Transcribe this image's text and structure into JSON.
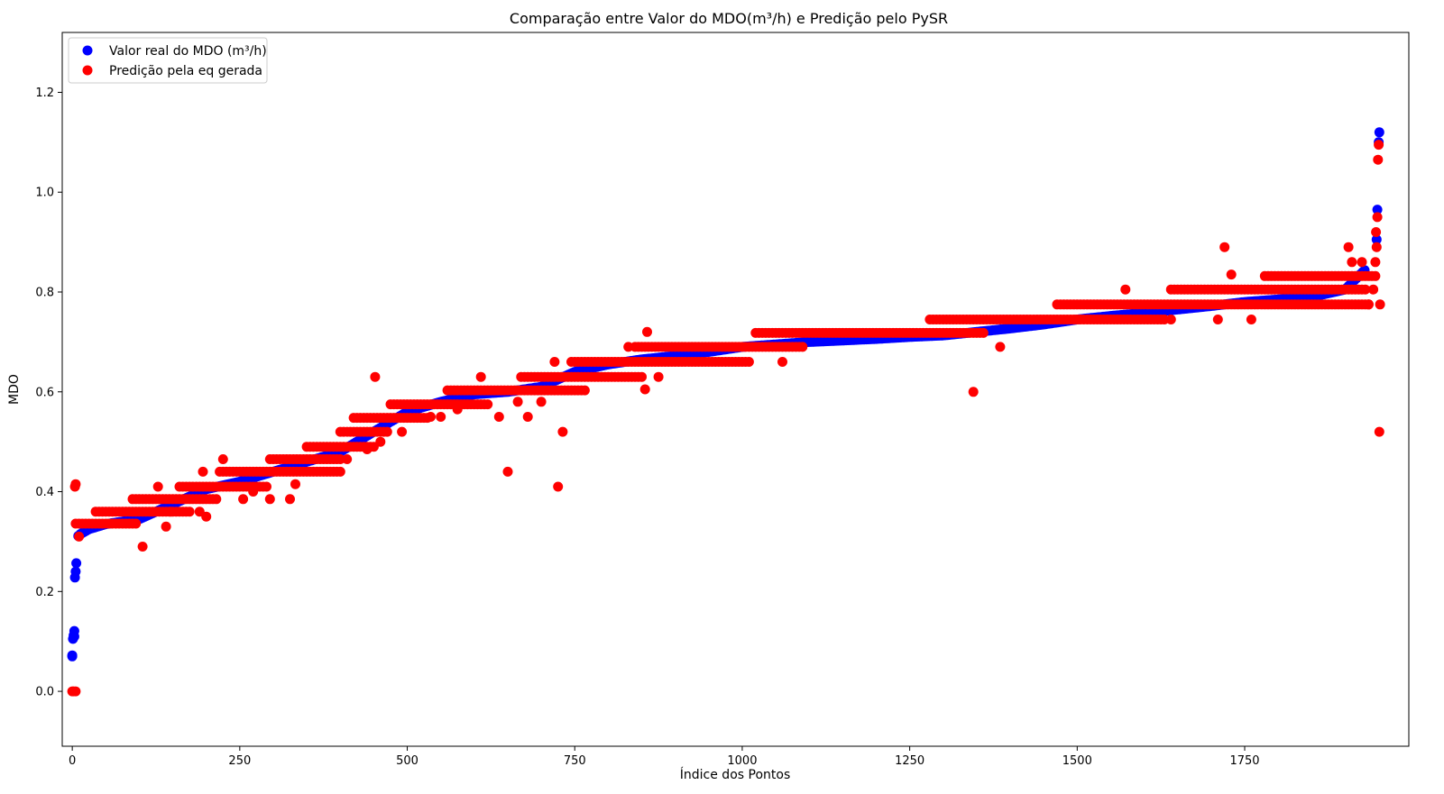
{
  "chart_data": {
    "type": "scatter",
    "title": "Comparação entre Valor do MDO(m³/h) e Predição pelo PySR",
    "xlabel": "Índice dos Pontos",
    "ylabel": "MDO",
    "xlim": [
      -15,
      1995
    ],
    "ylim": [
      -0.11,
      1.32
    ],
    "xticks": [
      0,
      250,
      500,
      750,
      1000,
      1250,
      1500,
      1750
    ],
    "yticks": [
      0.0,
      0.2,
      0.4,
      0.6,
      0.8,
      1.0,
      1.2
    ],
    "xtick_labels": [
      "0",
      "250",
      "500",
      "750",
      "1000",
      "1250",
      "1500",
      "1750"
    ],
    "ytick_labels": [
      "0.0",
      "0.2",
      "0.4",
      "0.6",
      "0.8",
      "1.0",
      "1.2"
    ],
    "grid": false,
    "legend_position": "top-left",
    "series": [
      {
        "name": "Valor real do MDO (m³/h)",
        "color": "#0000ff",
        "profile_x": [
          0,
          3,
          5,
          8,
          12,
          25,
          50,
          100,
          150,
          200,
          250,
          300,
          350,
          400,
          450,
          500,
          550,
          600,
          650,
          700,
          750,
          800,
          850,
          900,
          950,
          1000,
          1050,
          1100,
          1150,
          1200,
          1250,
          1300,
          1350,
          1400,
          1450,
          1500,
          1550,
          1600,
          1650,
          1700,
          1750,
          1800,
          1850,
          1900,
          1930
        ],
        "profile_y": [
          0.07,
          0.11,
          0.23,
          0.31,
          0.315,
          0.325,
          0.335,
          0.345,
          0.375,
          0.405,
          0.42,
          0.44,
          0.46,
          0.48,
          0.52,
          0.56,
          0.58,
          0.595,
          0.6,
          0.61,
          0.64,
          0.655,
          0.665,
          0.672,
          0.68,
          0.69,
          0.695,
          0.7,
          0.703,
          0.706,
          0.71,
          0.713,
          0.72,
          0.727,
          0.735,
          0.745,
          0.752,
          0.758,
          0.765,
          0.772,
          0.78,
          0.785,
          0.79,
          0.805,
          0.845
        ],
        "extra_points": [
          [
            0,
            0.072
          ],
          [
            1,
            0.105
          ],
          [
            2,
            0.112
          ],
          [
            3,
            0.121
          ],
          [
            4,
            0.228
          ],
          [
            5,
            0.24
          ],
          [
            1947,
            0.905
          ],
          [
            1948,
            0.965
          ],
          [
            1950,
            1.1
          ],
          [
            1951,
            1.12
          ]
        ]
      },
      {
        "name": "Predição pela eq gerada",
        "color": "#ff0000",
        "levels": [
          {
            "y": 0.336,
            "x0": 5,
            "x1": 95
          },
          {
            "y": 0.36,
            "x0": 35,
            "x1": 175
          },
          {
            "y": 0.385,
            "x0": 90,
            "x1": 215
          },
          {
            "y": 0.41,
            "x0": 160,
            "x1": 290
          },
          {
            "y": 0.44,
            "x0": 220,
            "x1": 400
          },
          {
            "y": 0.465,
            "x0": 295,
            "x1": 400
          },
          {
            "y": 0.49,
            "x0": 350,
            "x1": 450
          },
          {
            "y": 0.52,
            "x0": 400,
            "x1": 470
          },
          {
            "y": 0.548,
            "x0": 420,
            "x1": 530
          },
          {
            "y": 0.575,
            "x0": 475,
            "x1": 620
          },
          {
            "y": 0.603,
            "x0": 560,
            "x1": 765
          },
          {
            "y": 0.63,
            "x0": 670,
            "x1": 850
          },
          {
            "y": 0.66,
            "x0": 745,
            "x1": 1010
          },
          {
            "y": 0.69,
            "x0": 840,
            "x1": 1090
          },
          {
            "y": 0.718,
            "x0": 1020,
            "x1": 1360
          },
          {
            "y": 0.745,
            "x0": 1280,
            "x1": 1630
          },
          {
            "y": 0.775,
            "x0": 1470,
            "x1": 1935
          },
          {
            "y": 0.805,
            "x0": 1640,
            "x1": 1930
          },
          {
            "y": 0.832,
            "x0": 1780,
            "x1": 1945
          }
        ],
        "extra_points": [
          [
            0,
            0.0
          ],
          [
            2,
            0.0
          ],
          [
            5,
            0.0
          ],
          [
            4,
            0.41
          ],
          [
            5,
            0.415
          ],
          [
            10,
            0.31
          ],
          [
            105,
            0.29
          ],
          [
            128,
            0.41
          ],
          [
            140,
            0.33
          ],
          [
            147,
            0.36
          ],
          [
            190,
            0.36
          ],
          [
            200,
            0.35
          ],
          [
            195,
            0.44
          ],
          [
            225,
            0.465
          ],
          [
            255,
            0.385
          ],
          [
            270,
            0.4
          ],
          [
            295,
            0.385
          ],
          [
            325,
            0.385
          ],
          [
            333,
            0.415
          ],
          [
            410,
            0.465
          ],
          [
            440,
            0.485
          ],
          [
            452,
            0.63
          ],
          [
            460,
            0.5
          ],
          [
            492,
            0.52
          ],
          [
            535,
            0.55
          ],
          [
            550,
            0.55
          ],
          [
            575,
            0.565
          ],
          [
            610,
            0.63
          ],
          [
            637,
            0.55
          ],
          [
            650,
            0.44
          ],
          [
            665,
            0.58
          ],
          [
            680,
            0.55
          ],
          [
            700,
            0.58
          ],
          [
            720,
            0.66
          ],
          [
            725,
            0.41
          ],
          [
            732,
            0.52
          ],
          [
            830,
            0.69
          ],
          [
            855,
            0.605
          ],
          [
            858,
            0.72
          ],
          [
            875,
            0.63
          ],
          [
            1060,
            0.66
          ],
          [
            1345,
            0.6
          ],
          [
            1385,
            0.69
          ],
          [
            1572,
            0.805
          ],
          [
            1640,
            0.745
          ],
          [
            1710,
            0.745
          ],
          [
            1720,
            0.89
          ],
          [
            1730,
            0.835
          ],
          [
            1760,
            0.745
          ],
          [
            1905,
            0.89
          ],
          [
            1910,
            0.86
          ],
          [
            1925,
            0.86
          ],
          [
            1945,
            0.86
          ],
          [
            1947,
            0.89
          ],
          [
            1946,
            0.92
          ],
          [
            1948,
            0.95
          ],
          [
            1949,
            1.065
          ],
          [
            1950,
            1.095
          ],
          [
            1951,
            0.52
          ],
          [
            1952,
            0.775
          ],
          [
            1942,
            0.805
          ],
          [
            1935,
            0.775
          ]
        ]
      }
    ]
  }
}
